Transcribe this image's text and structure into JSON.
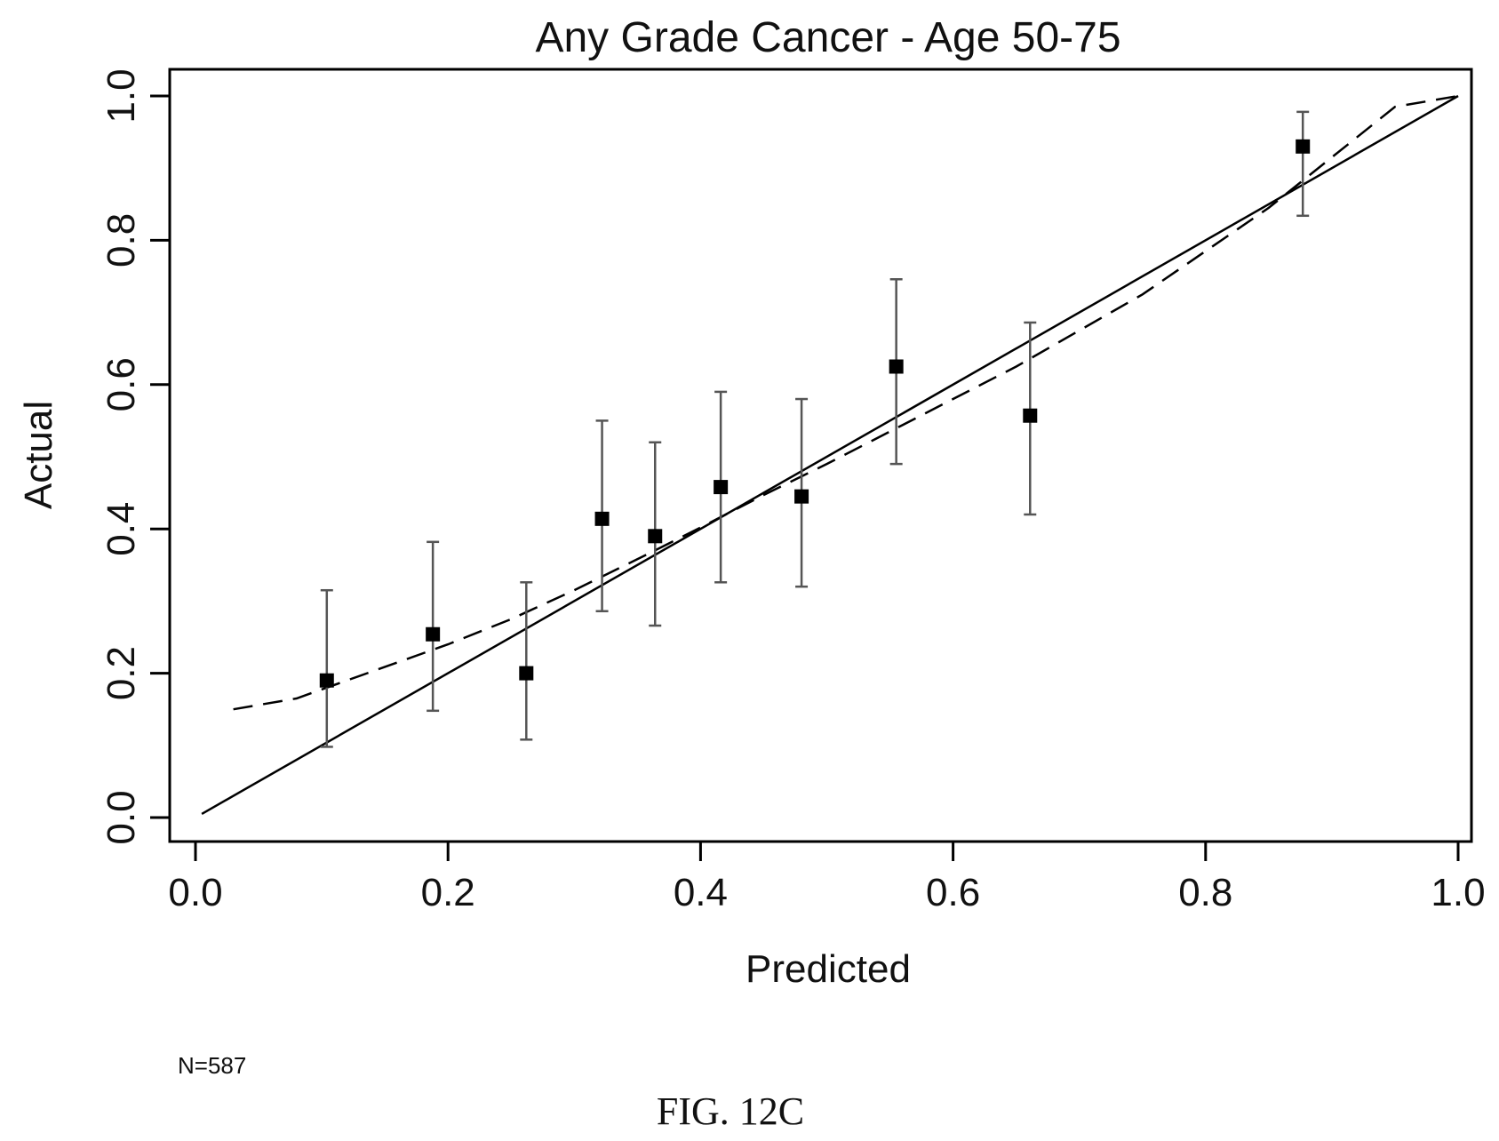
{
  "chart_data": {
    "type": "scatter",
    "title": "Any Grade Cancer - Age 50-75",
    "xlabel": "Predicted",
    "ylabel": "Actual",
    "xlim": [
      0.0,
      1.0
    ],
    "ylim": [
      0.0,
      1.0
    ],
    "x_ticks": [
      "0.0",
      "0.2",
      "0.4",
      "0.6",
      "0.8",
      "1.0"
    ],
    "y_ticks": [
      "0.0",
      "0.2",
      "0.4",
      "0.6",
      "0.8",
      "1.0"
    ],
    "grid": false,
    "legend": "none",
    "series": [
      {
        "type": "scatter_with_error_bars",
        "marker": "square",
        "color": "#000000",
        "points": [
          {
            "x": 0.104,
            "y": 0.19,
            "low": 0.098,
            "high": 0.315
          },
          {
            "x": 0.188,
            "y": 0.254,
            "low": 0.148,
            "high": 0.382
          },
          {
            "x": 0.262,
            "y": 0.2,
            "low": 0.108,
            "high": 0.326
          },
          {
            "x": 0.322,
            "y": 0.414,
            "low": 0.286,
            "high": 0.55
          },
          {
            "x": 0.364,
            "y": 0.39,
            "low": 0.266,
            "high": 0.52
          },
          {
            "x": 0.416,
            "y": 0.458,
            "low": 0.326,
            "high": 0.59
          },
          {
            "x": 0.48,
            "y": 0.445,
            "low": 0.32,
            "high": 0.58
          },
          {
            "x": 0.555,
            "y": 0.625,
            "low": 0.49,
            "high": 0.746
          },
          {
            "x": 0.661,
            "y": 0.557,
            "low": 0.42,
            "high": 0.686
          },
          {
            "x": 0.877,
            "y": 0.93,
            "low": 0.834,
            "high": 0.978
          }
        ]
      },
      {
        "type": "line",
        "style": "solid",
        "color": "#000000",
        "x": [
          0.005,
          1.0
        ],
        "y": [
          0.005,
          1.0
        ]
      },
      {
        "type": "line",
        "style": "dashed",
        "color": "#000000",
        "x": [
          0.03,
          0.08,
          0.12,
          0.16,
          0.2,
          0.25,
          0.3,
          0.35,
          0.4,
          0.45,
          0.5,
          0.55,
          0.6,
          0.65,
          0.7,
          0.75,
          0.8,
          0.85,
          0.9,
          0.95,
          1.0
        ],
        "y": [
          0.15,
          0.165,
          0.19,
          0.215,
          0.24,
          0.275,
          0.315,
          0.358,
          0.402,
          0.447,
          0.49,
          0.535,
          0.58,
          0.625,
          0.675,
          0.725,
          0.785,
          0.845,
          0.915,
          0.985,
          1.0
        ]
      }
    ]
  },
  "annotations": {
    "n_label": "N=587",
    "figure_caption": "FIG. 12C"
  }
}
